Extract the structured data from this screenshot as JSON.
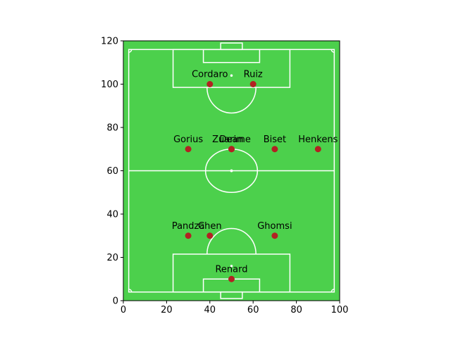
{
  "chart_data": {
    "type": "scatter",
    "title": "",
    "xlabel": "",
    "ylabel": "",
    "xlim": [
      0,
      100
    ],
    "ylim": [
      0,
      120
    ],
    "xticks": [
      0,
      20,
      40,
      60,
      80,
      100
    ],
    "yticks": [
      0,
      20,
      40,
      60,
      80,
      100,
      120
    ],
    "grid": false,
    "pitch_color": "#4cd04c",
    "line_color": "#ffffff",
    "marker_color": "#b22222",
    "points": [
      {
        "name": "Cordaro",
        "x": 40,
        "y": 100
      },
      {
        "name": "Ruiz",
        "x": 60,
        "y": 100
      },
      {
        "name": "Gorius",
        "x": 30,
        "y": 70
      },
      {
        "name": "Dean",
        "x": 50,
        "y": 70
      },
      {
        "name": "Zuarime",
        "x": 50,
        "y": 70
      },
      {
        "name": "Biset",
        "x": 70,
        "y": 70
      },
      {
        "name": "Henkens",
        "x": 90,
        "y": 70
      },
      {
        "name": "Pandza",
        "x": 30,
        "y": 30
      },
      {
        "name": "Chen",
        "x": 40,
        "y": 30
      },
      {
        "name": "Ghomsi",
        "x": 70,
        "y": 30
      },
      {
        "name": "Renard",
        "x": 50,
        "y": 10
      }
    ]
  }
}
